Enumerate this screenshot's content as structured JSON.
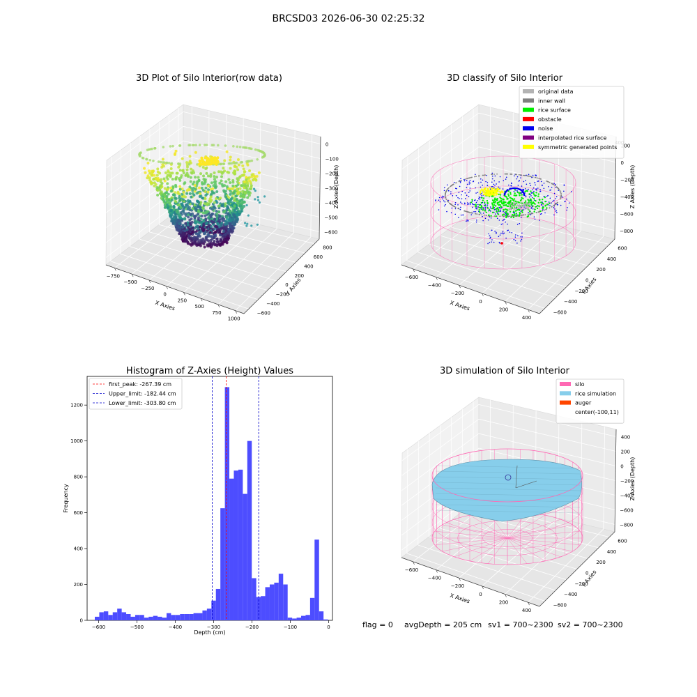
{
  "suptitle": "BRCSD03 2026-06-30 02:25:32",
  "colors": {
    "original": "#b3b3b3",
    "inner_wall": "#808080",
    "rice_surface": "#00ee00",
    "obstacle": "#ff0000",
    "noise": "#0000ee",
    "interpolated": "#800080",
    "symmetric": "#ffff00",
    "silo": "#ff69b4",
    "rice_sim": "#87ceeb",
    "auger": "#ff4500",
    "hist_bar": "#4d4dff",
    "first_peak_line": "#ff0000",
    "limit_line": "#0000cc"
  },
  "panel1": {
    "title": "3D Plot of Silo Interior(row data)",
    "xlabel": "X Axies",
    "ylabel": "Y Axies",
    "zlabel": "Z Axies (Depth)",
    "x_ticks": [
      "−750",
      "−500",
      "−250",
      "0",
      "250",
      "500",
      "750",
      "1000"
    ],
    "y_ticks": [
      "−600",
      "−400",
      "−200",
      "0",
      "200",
      "400",
      "600",
      "800"
    ],
    "z_ticks": [
      "0",
      "−100",
      "−200",
      "−300",
      "−400",
      "−500",
      "−600"
    ]
  },
  "panel2": {
    "title": "3D classify of Silo Interior",
    "xlabel": "X Axies",
    "ylabel": "Y Axies",
    "zlabel": "Z Axies (Depth)",
    "x_ticks": [
      "−600",
      "−400",
      "−200",
      "0",
      "200",
      "400"
    ],
    "y_ticks": [
      "−600",
      "−400",
      "−200",
      "0",
      "200",
      "400",
      "600"
    ],
    "z_ticks": [
      "200",
      "0",
      "−200",
      "−400",
      "−600",
      "−800"
    ],
    "z_top_tick": "400",
    "legend": [
      {
        "label": "original data",
        "color": "#b3b3b3"
      },
      {
        "label": "inner wall",
        "color": "#808080"
      },
      {
        "label": "rice surface",
        "color": "#00ee00"
      },
      {
        "label": "obstacle",
        "color": "#ff0000"
      },
      {
        "label": "noise",
        "color": "#0000ee"
      },
      {
        "label": "interpolated rice surface",
        "color": "#800080"
      },
      {
        "label": "symmetric generated points",
        "color": "#ffff00"
      }
    ]
  },
  "panel4": {
    "title": "3D simulation of Silo Interior",
    "xlabel": "X Axies",
    "ylabel": "Y Axies",
    "zlabel": "Z Axies (Depth)",
    "x_ticks": [
      "−600",
      "−400",
      "−200",
      "0",
      "200",
      "400"
    ],
    "y_ticks": [
      "−600",
      "−400",
      "−200",
      "0",
      "200",
      "400",
      "600"
    ],
    "z_ticks": [
      "400",
      "200",
      "0",
      "−200",
      "−400",
      "−600",
      "−800"
    ],
    "legend": [
      {
        "label": "silo",
        "color": "#ff69b4"
      },
      {
        "label": "rice simulation",
        "color": "#87ceeb"
      },
      {
        "label": "auger",
        "color": "#ff4500"
      },
      {
        "label": "center(-100,11)",
        "color": ""
      }
    ]
  },
  "footer": {
    "flag": "flag = 0",
    "avg": "avgDepth = 205 cm",
    "sv1": "sv1 = 700~2300",
    "sv2": "sv2 = 700~2300"
  },
  "chart_data": [
    {
      "type": "bar",
      "title": "Histogram of Z-Axies (Height) Values",
      "xlabel": "Depth (cm)",
      "ylabel": "Frequency",
      "xlim": [
        -630,
        10
      ],
      "ylim": [
        0,
        1360
      ],
      "x_ticks": [
        -600,
        -500,
        -400,
        -300,
        -200,
        -100,
        0
      ],
      "y_ticks": [
        0,
        200,
        400,
        600,
        800,
        1000,
        1200
      ],
      "bin_width": 11.7,
      "bin_left": [
        -610,
        -598.3,
        -586.6,
        -574.9,
        -563.2,
        -551.5,
        -539.8,
        -528.1,
        -516.4,
        -504.7,
        -493,
        -481.3,
        -469.6,
        -457.9,
        -446.2,
        -434.5,
        -422.8,
        -411.1,
        -399.4,
        -387.7,
        -376,
        -364.3,
        -352.6,
        -340.9,
        -329.2,
        -317.5,
        -305.8,
        -294.1,
        -282.4,
        -270.7,
        -259,
        -247.3,
        -235.6,
        -223.9,
        -212.2,
        -200.5,
        -188.8,
        -177.1,
        -165.4,
        -153.7,
        -142,
        -130.3,
        -118.6,
        -106.9,
        -95.2,
        -83.5,
        -71.8,
        -60.1,
        -48.4,
        -36.7,
        -25,
        -13.3
      ],
      "values": [
        20,
        45,
        50,
        30,
        45,
        65,
        45,
        35,
        20,
        30,
        30,
        15,
        20,
        25,
        20,
        15,
        40,
        30,
        30,
        35,
        35,
        35,
        40,
        40,
        55,
        65,
        110,
        175,
        625,
        1300,
        790,
        835,
        840,
        705,
        1000,
        235,
        130,
        135,
        185,
        200,
        210,
        260,
        200,
        15,
        10,
        15,
        25,
        30,
        125,
        450,
        50,
        5
      ],
      "vlines": [
        {
          "label": "first_peak: -267.39 cm",
          "x": -267.39,
          "color": "#ff0000"
        },
        {
          "label": "Upper_limit: -182.44 cm",
          "x": -182.44,
          "color": "#0000cc"
        },
        {
          "label": "Lower_limit: -303.80 cm",
          "x": -303.8,
          "color": "#0000cc"
        }
      ],
      "legend_position": "upper-left"
    }
  ]
}
